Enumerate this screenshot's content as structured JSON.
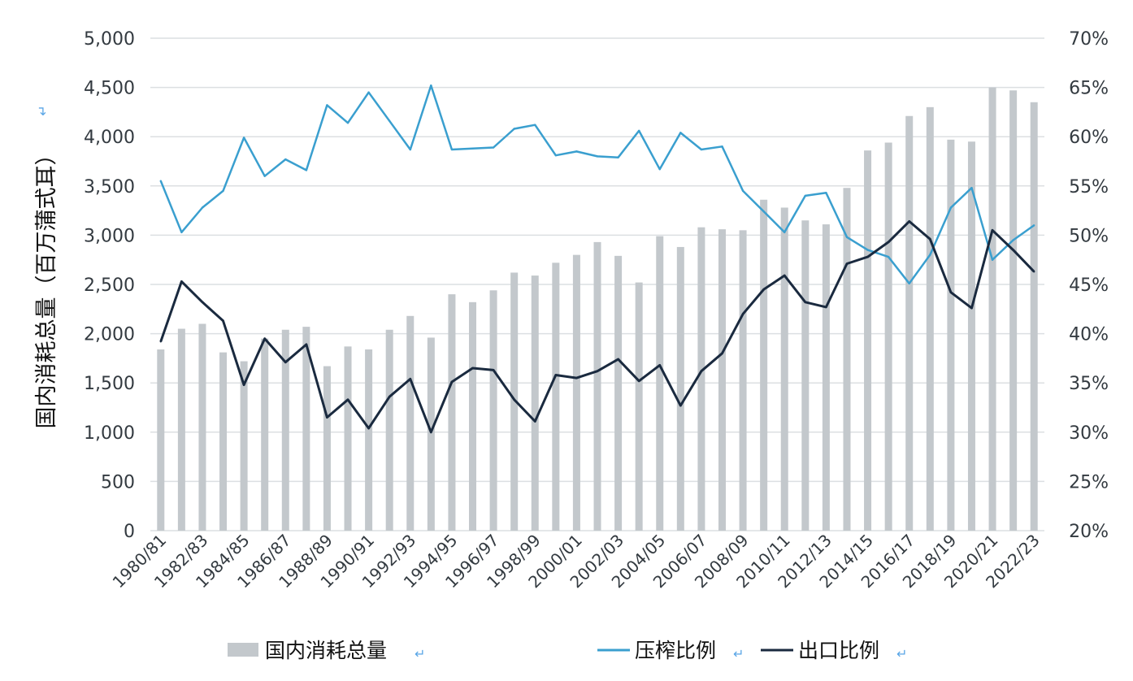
{
  "chart_data": {
    "type": "bar+line",
    "title": "",
    "ylabel": "国内消耗总量（百万蒲式耳）",
    "ylabel_mark": "↵",
    "ylim": [
      0,
      5000
    ],
    "y2lim": [
      0.2,
      0.7
    ],
    "yticks": [
      "0",
      "500",
      "1,000",
      "1,500",
      "2,000",
      "2,500",
      "3,000",
      "3,500",
      "4,000",
      "4,500",
      "5,000"
    ],
    "y2ticks": [
      "20%",
      "25%",
      "30%",
      "35%",
      "40%",
      "45%",
      "50%",
      "55%",
      "60%",
      "65%",
      "70%"
    ],
    "grid": true,
    "legend_position": "bottom",
    "categories": [
      "1980/81",
      "1981/82",
      "1982/83",
      "1983/84",
      "1984/85",
      "1985/86",
      "1986/87",
      "1987/88",
      "1988/89",
      "1989/90",
      "1990/91",
      "1991/92",
      "1992/93",
      "1993/94",
      "1994/95",
      "1995/96",
      "1996/97",
      "1997/98",
      "1998/99",
      "1999/00",
      "2000/01",
      "2001/02",
      "2002/03",
      "2003/04",
      "2004/05",
      "2005/06",
      "2006/07",
      "2007/08",
      "2008/09",
      "2009/10",
      "2010/11",
      "2011/12",
      "2012/13",
      "2013/14",
      "2014/15",
      "2015/16",
      "2016/17",
      "2017/18",
      "2018/19",
      "2019/20",
      "2020/21",
      "2021/22",
      "2022/23"
    ],
    "x_tick_labels": [
      "1980/81",
      "1982/83",
      "1984/85",
      "1986/87",
      "1988/89",
      "1990/91",
      "1992/93",
      "1994/95",
      "1996/97",
      "1998/99",
      "2000/01",
      "2002/03",
      "2004/05",
      "2006/07",
      "2008/09",
      "2010/11",
      "2012/13",
      "2014/15",
      "2016/17",
      "2018/19",
      "2020/21",
      "2022/23"
    ],
    "series": [
      {
        "name": "国内消耗总量",
        "type": "bar",
        "axis": "left",
        "color": "#c3c8cc",
        "values": [
          1840,
          2050,
          2100,
          1810,
          1720,
          1950,
          2040,
          2070,
          1670,
          1870,
          1840,
          2040,
          2180,
          1960,
          2400,
          2320,
          2440,
          2620,
          2590,
          2720,
          2800,
          2930,
          2790,
          2520,
          2990,
          2880,
          3080,
          3060,
          3050,
          3360,
          3280,
          3150,
          3110,
          3480,
          3860,
          3940,
          4210,
          4300,
          3970,
          3950,
          4500,
          4470,
          4350
        ]
      },
      {
        "name": "压榨比例",
        "type": "line",
        "axis": "right",
        "color": "#3a9fcf",
        "values": [
          0.555,
          0.503,
          0.528,
          0.545,
          0.599,
          0.56,
          0.577,
          0.566,
          0.632,
          0.614,
          0.645,
          0.616,
          0.587,
          0.652,
          0.587,
          0.588,
          0.589,
          0.608,
          0.612,
          0.581,
          0.585,
          0.58,
          0.579,
          0.606,
          0.567,
          0.604,
          0.587,
          0.59,
          0.545,
          0.524,
          0.503,
          0.54,
          0.543,
          0.498,
          0.485,
          0.478,
          0.451,
          0.48,
          0.528,
          0.548,
          0.475,
          0.495,
          0.51
        ]
      },
      {
        "name": "出口比例",
        "type": "line",
        "axis": "right",
        "color": "#1a2a3f",
        "values": [
          0.392,
          0.453,
          0.432,
          0.413,
          0.348,
          0.395,
          0.371,
          0.389,
          0.315,
          0.333,
          0.304,
          0.336,
          0.354,
          0.3,
          0.351,
          0.365,
          0.363,
          0.333,
          0.311,
          0.358,
          0.355,
          0.362,
          0.374,
          0.352,
          0.368,
          0.327,
          0.362,
          0.38,
          0.42,
          0.445,
          0.459,
          0.432,
          0.427,
          0.471,
          0.478,
          0.493,
          0.514,
          0.496,
          0.442,
          0.426,
          0.505,
          0.485,
          0.463
        ]
      }
    ]
  },
  "legend": {
    "mark": "↵",
    "items": [
      "国内消耗总量",
      "压榨比例",
      "出口比例"
    ]
  }
}
